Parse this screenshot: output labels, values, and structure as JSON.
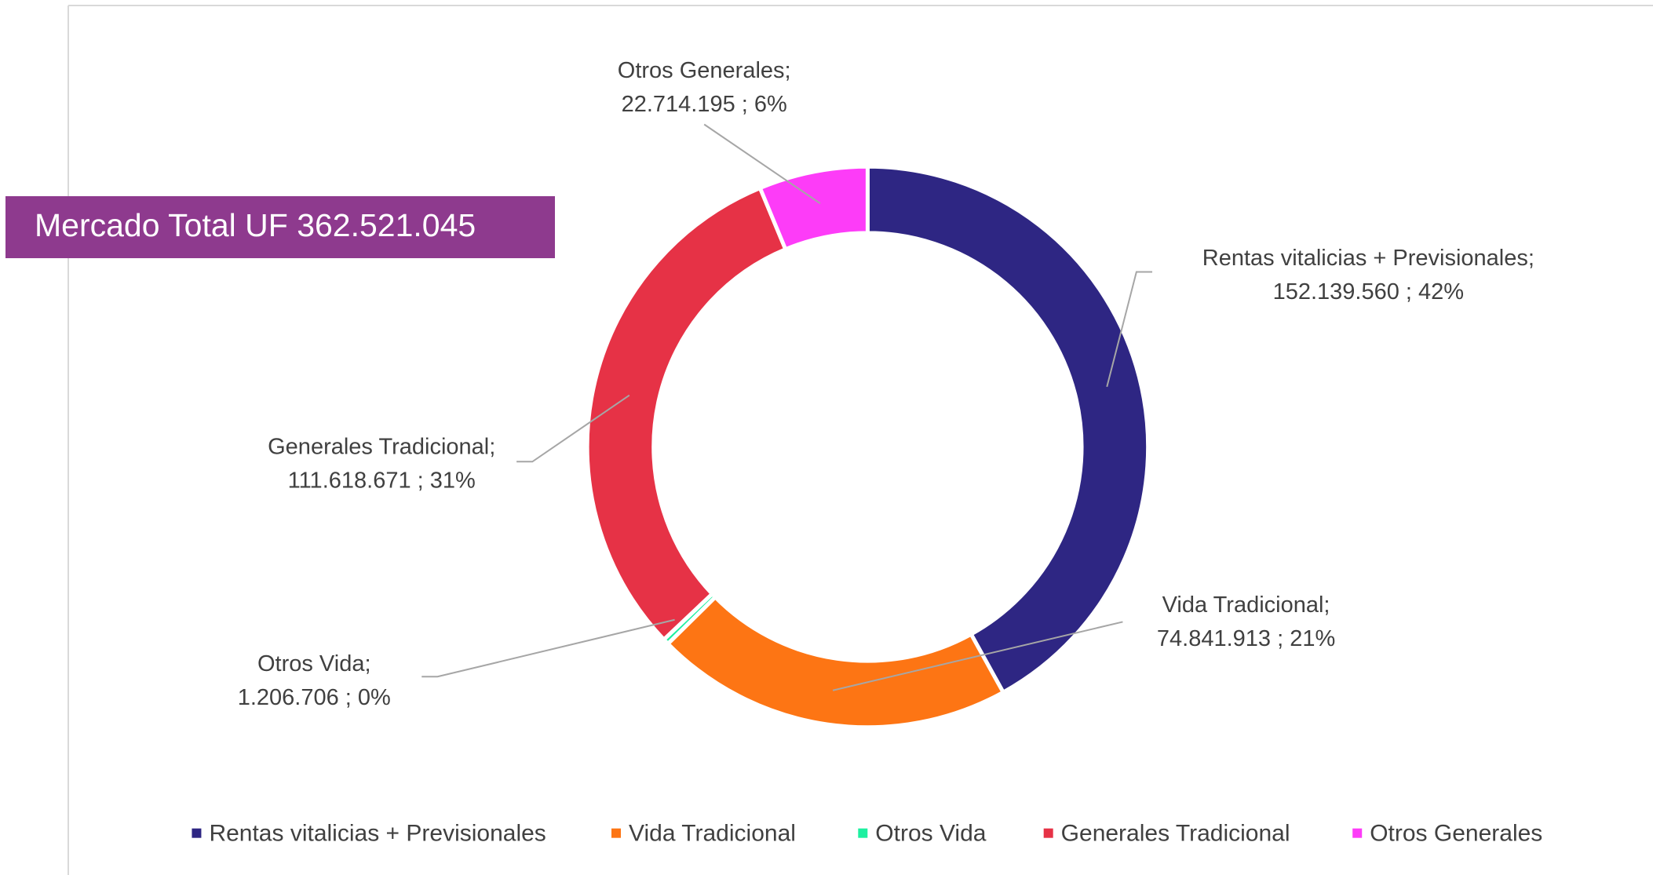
{
  "chart_data": {
    "type": "donut",
    "annotation": "Mercado Total UF 362.521.045",
    "categories": [
      "Rentas vitalicias + Previsionales",
      "Vida Tradicional",
      "Otros Vida",
      "Generales Tradicional",
      "Otros Generales"
    ],
    "label_names": [
      "Rentas vitalicias + Previsionales;",
      "Vida Tradicional;",
      "Otros Vida;",
      "Generales Tradicional;",
      "Otros Generales;"
    ],
    "values": [
      152139560,
      74841913,
      1206706,
      111618671,
      22714195
    ],
    "value_labels": [
      "152.139.560 ; 42%",
      "74.841.913 ; 21%",
      "1.206.706 ; 0%",
      "111.618.671 ; 31%",
      "22.714.195 ; 6%"
    ],
    "colors": [
      "#2e2683",
      "#fd7514",
      "#1df0a0",
      "#e63246",
      "#fd3cf8"
    ],
    "legend": "bottom"
  }
}
